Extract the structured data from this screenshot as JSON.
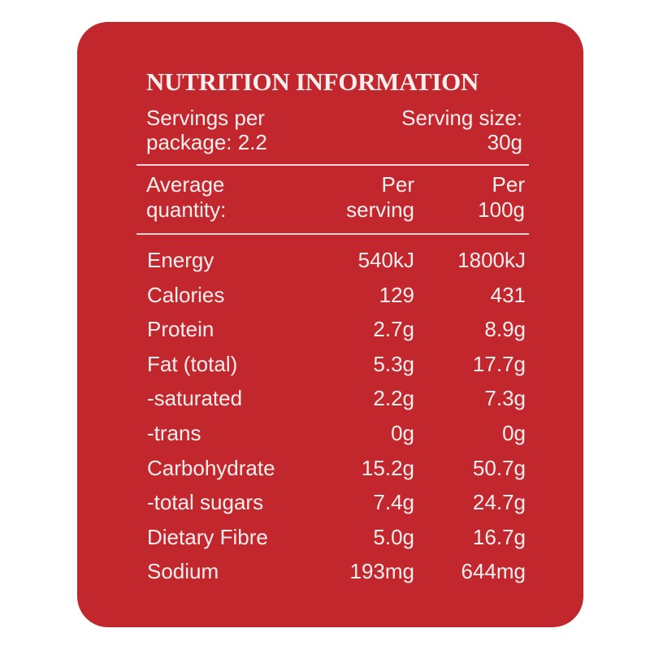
{
  "title": "NUTRITION INFORMATION",
  "servings": {
    "line1": "Servings per",
    "line2": "package: 2.2"
  },
  "serving_size": {
    "line1": "Serving size:",
    "line2": "30g"
  },
  "header": {
    "col0": {
      "line1": "Average",
      "line2": "quantity:"
    },
    "col1": {
      "line1": "Per",
      "line2": "serving"
    },
    "col2": {
      "line1": "Per",
      "line2": "100g"
    }
  },
  "rows": [
    {
      "name": "Energy",
      "per_serving": "540kJ",
      "per_100g": "1800kJ"
    },
    {
      "name": "Calories",
      "per_serving": "129",
      "per_100g": "431"
    },
    {
      "name": "Protein",
      "per_serving": "2.7g",
      "per_100g": "8.9g"
    },
    {
      "name": "Fat (total)",
      "per_serving": "5.3g",
      "per_100g": "17.7g"
    },
    {
      "name": "-saturated",
      "per_serving": "2.2g",
      "per_100g": "7.3g"
    },
    {
      "name": "-trans",
      "per_serving": "0g",
      "per_100g": "0g"
    },
    {
      "name": "Carbohydrate",
      "per_serving": "15.2g",
      "per_100g": "50.7g"
    },
    {
      "name": "-total sugars",
      "per_serving": "7.4g",
      "per_100g": "24.7g"
    },
    {
      "name": "Dietary Fibre",
      "per_serving": "5.0g",
      "per_100g": "16.7g"
    },
    {
      "name": "Sodium",
      "per_serving": "193mg",
      "per_100g": "644mg"
    }
  ],
  "colors": {
    "panel": "#c1272d",
    "text": "#fbeeee"
  }
}
